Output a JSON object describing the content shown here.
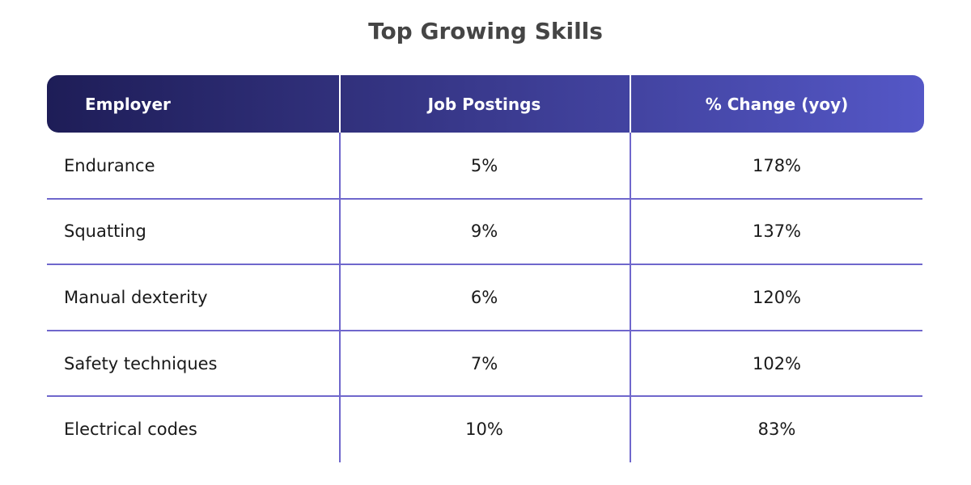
{
  "header": {
    "title": "Top Growing Skills"
  },
  "table": {
    "columns": [
      "Employer",
      "Job Postings",
      "% Change (yoy)"
    ],
    "rows": [
      [
        "Endurance",
        "5%",
        "178%"
      ],
      [
        "Squatting",
        "9%",
        "137%"
      ],
      [
        "Manual dexterity",
        "6%",
        "120%"
      ],
      [
        "Safety techniques",
        "7%",
        "102%"
      ],
      [
        "Electrical codes",
        "10%",
        "83%"
      ]
    ]
  }
}
